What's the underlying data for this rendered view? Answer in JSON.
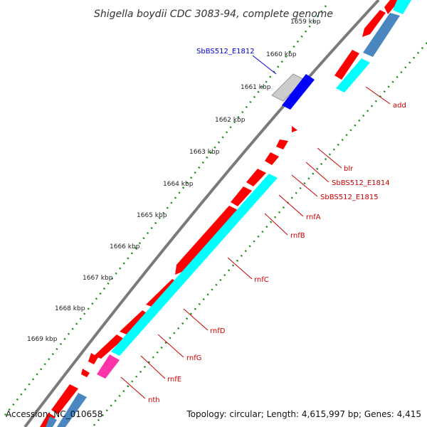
{
  "title": "Shigella boydii CDC 3083-94, complete genome",
  "accession": "Accession: NC_010658",
  "summary": "Topology: circular; Length: 4,615,997 bp; Genes: 4,415",
  "ticks": [
    "1659 kbp",
    "1660 kbp",
    "1661 kbp",
    "1662 kbp",
    "1663 kbp",
    "1664 kbp",
    "1665 kbp",
    "1666 kbp",
    "1667 kbp",
    "1668 kbp",
    "1669 kbp"
  ],
  "genes": {
    "blue": "SbBS512_E1812",
    "add": "add",
    "blr": "blr",
    "e1814": "SbBS512_E1814",
    "e1815": "SbBS512_E1815",
    "rnfA": "rnfA",
    "rnfB": "rnfB",
    "rnfC": "rnfC",
    "rnfD": "rnfD",
    "rnfG": "rnfG",
    "rnfE": "rnfE",
    "nth": "nth"
  },
  "colors": {
    "cds": "#ff0000",
    "gene": "#00ffff",
    "rrna_like": "#ff33aa",
    "steel": "#4a86c0",
    "blue_feature": "#0000ff",
    "backbone": "#888888",
    "tick_marks": "#1a8a1a"
  }
}
